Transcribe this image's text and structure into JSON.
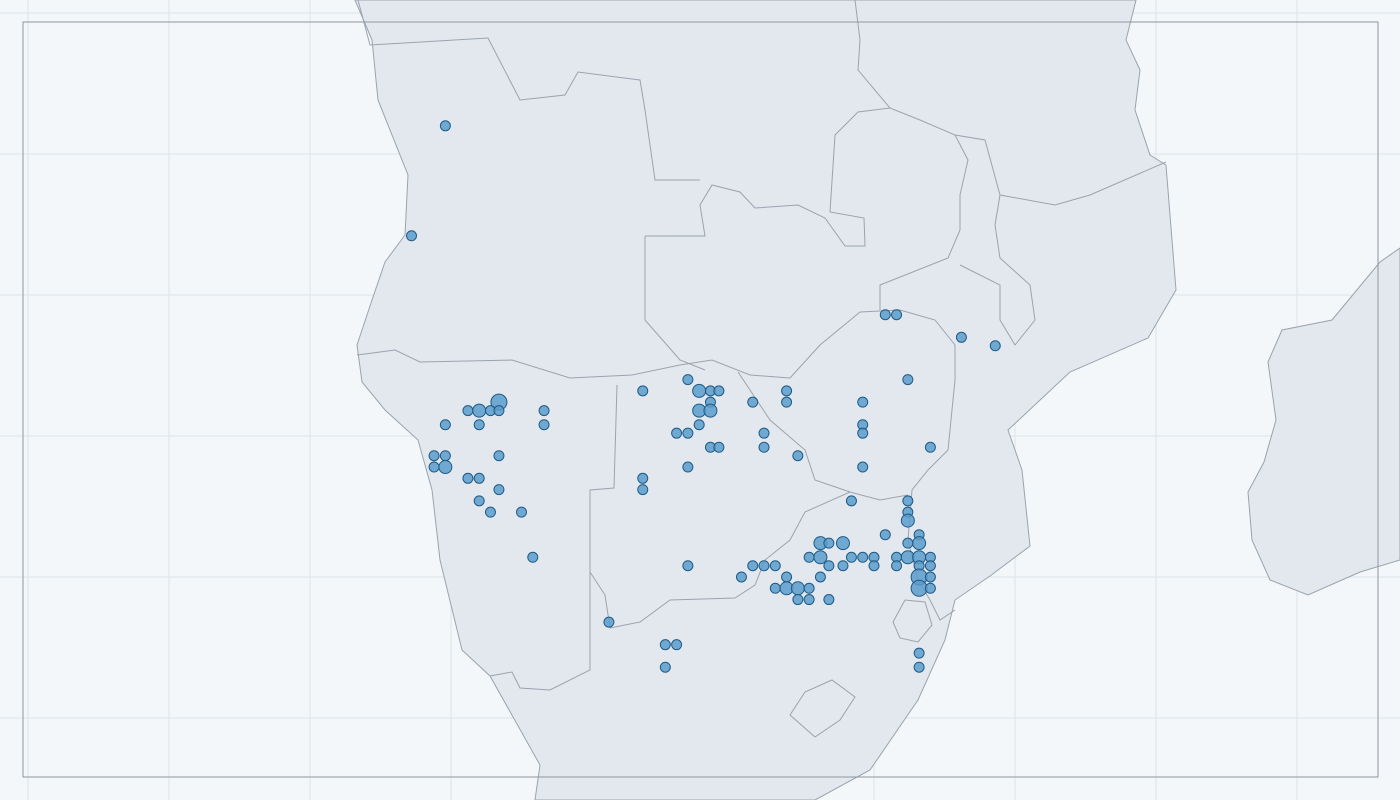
{
  "map": {
    "points": [
      [
        14.8,
        -4.0,
        1
      ],
      [
        13.6,
        -7.9,
        1
      ],
      [
        30.4,
        -10.7,
        1
      ],
      [
        30.8,
        -10.7,
        1
      ],
      [
        33.1,
        -11.5,
        1
      ],
      [
        34.3,
        -11.8,
        1
      ],
      [
        31.2,
        -13.0,
        1
      ],
      [
        21.8,
        -13.4,
        1
      ],
      [
        23.4,
        -13.0,
        1
      ],
      [
        23.8,
        -13.4,
        2
      ],
      [
        24.2,
        -13.4,
        1
      ],
      [
        24.5,
        -13.4,
        1
      ],
      [
        24.2,
        -13.8,
        1
      ],
      [
        23.8,
        -14.1,
        2
      ],
      [
        24.2,
        -14.1,
        2
      ],
      [
        23.8,
        -14.6,
        1
      ],
      [
        23.0,
        -14.9,
        1
      ],
      [
        23.4,
        -14.9,
        1
      ],
      [
        24.2,
        -15.4,
        1
      ],
      [
        24.5,
        -15.4,
        1
      ],
      [
        23.4,
        -16.1,
        1
      ],
      [
        21.8,
        -16.5,
        1
      ],
      [
        21.8,
        -16.9,
        1
      ],
      [
        25.7,
        -13.8,
        1
      ],
      [
        26.9,
        -13.4,
        1
      ],
      [
        26.9,
        -13.8,
        1
      ],
      [
        26.1,
        -14.9,
        1
      ],
      [
        26.1,
        -15.4,
        1
      ],
      [
        27.3,
        -15.7,
        1
      ],
      [
        29.6,
        -13.8,
        1
      ],
      [
        29.6,
        -14.6,
        1
      ],
      [
        29.6,
        -14.9,
        1
      ],
      [
        29.6,
        -16.1,
        1
      ],
      [
        32.0,
        -15.4,
        1
      ],
      [
        16.7,
        -13.8,
        3
      ],
      [
        15.6,
        -14.1,
        1
      ],
      [
        16.0,
        -14.1,
        2
      ],
      [
        16.4,
        -14.1,
        1
      ],
      [
        16.7,
        -14.1,
        1
      ],
      [
        18.3,
        -14.1,
        1
      ],
      [
        18.3,
        -14.6,
        1
      ],
      [
        14.8,
        -14.6,
        1
      ],
      [
        16.0,
        -14.6,
        1
      ],
      [
        14.4,
        -15.7,
        1
      ],
      [
        14.8,
        -15.7,
        1
      ],
      [
        14.4,
        -16.1,
        1
      ],
      [
        14.8,
        -16.1,
        2
      ],
      [
        16.7,
        -15.7,
        1
      ],
      [
        15.6,
        -16.5,
        1
      ],
      [
        16.0,
        -16.5,
        1
      ],
      [
        16.7,
        -16.9,
        1
      ],
      [
        16.0,
        -17.3,
        1
      ],
      [
        16.4,
        -17.7,
        1
      ],
      [
        17.5,
        -17.7,
        1
      ],
      [
        17.9,
        -19.3,
        1
      ],
      [
        29.2,
        -17.3,
        1
      ],
      [
        31.2,
        -17.3,
        1
      ],
      [
        31.2,
        -17.7,
        1
      ],
      [
        31.2,
        -18.0,
        2
      ],
      [
        30.4,
        -18.5,
        1
      ],
      [
        31.6,
        -18.5,
        1
      ],
      [
        31.6,
        -18.8,
        2
      ],
      [
        31.2,
        -18.8,
        1
      ],
      [
        28.1,
        -18.8,
        2
      ],
      [
        28.4,
        -18.8,
        1
      ],
      [
        28.9,
        -18.8,
        2
      ],
      [
        27.7,
        -19.3,
        1
      ],
      [
        28.1,
        -19.3,
        2
      ],
      [
        29.2,
        -19.3,
        1
      ],
      [
        29.6,
        -19.3,
        1
      ],
      [
        30.0,
        -19.3,
        1
      ],
      [
        30.8,
        -19.3,
        1
      ],
      [
        31.2,
        -19.3,
        2
      ],
      [
        31.6,
        -19.3,
        2
      ],
      [
        32.0,
        -19.3,
        1
      ],
      [
        28.4,
        -19.6,
        1
      ],
      [
        28.9,
        -19.6,
        1
      ],
      [
        30.0,
        -19.6,
        1
      ],
      [
        30.8,
        -19.6,
        1
      ],
      [
        31.6,
        -19.6,
        1
      ],
      [
        32.0,
        -19.6,
        1
      ],
      [
        23.4,
        -19.6,
        1
      ],
      [
        25.7,
        -19.6,
        1
      ],
      [
        26.1,
        -19.6,
        1
      ],
      [
        26.5,
        -19.6,
        1
      ],
      [
        25.3,
        -20.0,
        1
      ],
      [
        26.9,
        -20.0,
        1
      ],
      [
        28.1,
        -20.0,
        1
      ],
      [
        31.6,
        -20.0,
        3
      ],
      [
        32.0,
        -20.0,
        1
      ],
      [
        26.5,
        -20.4,
        1
      ],
      [
        26.9,
        -20.4,
        2
      ],
      [
        27.3,
        -20.4,
        2
      ],
      [
        27.7,
        -20.4,
        1
      ],
      [
        31.6,
        -20.4,
        3
      ],
      [
        32.0,
        -20.4,
        1
      ],
      [
        27.3,
        -20.8,
        1
      ],
      [
        27.7,
        -20.8,
        1
      ],
      [
        28.4,
        -20.8,
        1
      ],
      [
        20.6,
        -21.6,
        1
      ],
      [
        22.6,
        -22.4,
        1
      ],
      [
        23.0,
        -22.4,
        1
      ],
      [
        22.6,
        -23.2,
        1
      ],
      [
        31.6,
        -22.7,
        1
      ],
      [
        31.6,
        -23.2,
        1
      ]
    ]
  }
}
